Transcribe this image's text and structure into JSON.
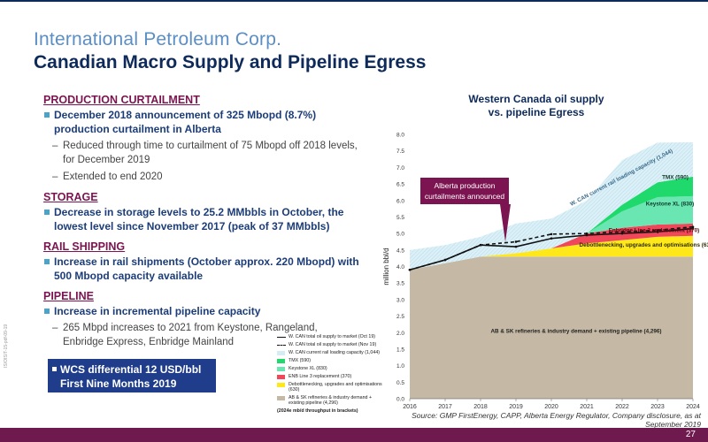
{
  "header": {
    "company": "International Petroleum Corp.",
    "title": "Canadian Macro Supply and Pipeline Egress"
  },
  "sections": [
    {
      "title": "PRODUCTION CURTAILMENT",
      "bullet": "December 2018 announcement of 325 Mbopd (8.7%) production curtailment in Alberta",
      "subs": [
        "Reduced through time to curtailment of 75 Mbopd off 2018 levels, for December 2019",
        "Extended to end 2020"
      ]
    },
    {
      "title": "STORAGE",
      "bullet": "Decrease in storage levels to 25.2 MMbbls in October, the lowest level since November 2017 (peak of 37 MMbbls)",
      "subs": []
    },
    {
      "title": "RAIL SHIPPING",
      "bullet": "Increase in rail shipments (October approx. 220 Mbopd) with 500 Mbopd capacity available",
      "subs": []
    },
    {
      "title": "PIPELINE",
      "bullet": "Increase in incremental pipeline capacity",
      "subs": [
        "265 Mbpd increases to 2021 from Keystone, Rangeland, Enbridge Express, Enbridge Mainland"
      ]
    }
  ],
  "wcs_box": {
    "line1": "WCS differential 12 USD/bbl",
    "line2": "First Nine Months 2019"
  },
  "side_code": "IS/OIS/T-15-pdf-09-19",
  "chart_data": {
    "type": "area",
    "title": "Western Canada oil supply\nvs. pipeline Egress",
    "ylabel": "million bbl/d",
    "x": [
      2016,
      2017,
      2018,
      2019,
      2020,
      2021,
      2022,
      2023,
      2024
    ],
    "ylim": [
      0.0,
      8.0
    ],
    "yticks": [
      "0.0",
      "0.5",
      "1.0",
      "1.5",
      "2.0",
      "2.5",
      "3.0",
      "3.5",
      "4.0",
      "4.5",
      "5.0",
      "5.5",
      "6.0",
      "6.5",
      "7.0",
      "7.5",
      "8.0"
    ],
    "stacked_series": [
      {
        "name": "AB & SK refineries & industry demand + existing pipeline (4,296)",
        "color": "#c5b9a5",
        "values": [
          3.9,
          4.1,
          4.3,
          4.3,
          4.3,
          4.3,
          4.3,
          4.3,
          4.3
        ]
      },
      {
        "name": "Debottlenecking, upgrades and optimisations (630)",
        "color": "#ffe81a",
        "values": [
          0.0,
          0.0,
          0.0,
          0.1,
          0.25,
          0.4,
          0.5,
          0.6,
          0.63
        ]
      },
      {
        "name": "ENB Line 3 replacement (370)",
        "color": "#f0475b",
        "values": [
          0.0,
          0.0,
          0.0,
          0.0,
          0.0,
          0.3,
          0.37,
          0.37,
          0.37
        ]
      },
      {
        "name": "Keystone XL (830)",
        "color": "#69e6b2",
        "values": [
          0.0,
          0.0,
          0.0,
          0.0,
          0.0,
          0.0,
          0.5,
          0.83,
          0.83
        ]
      },
      {
        "name": "TMX (590)",
        "color": "#1fd96c",
        "values": [
          0.0,
          0.0,
          0.0,
          0.0,
          0.0,
          0.0,
          0.2,
          0.45,
          0.59
        ]
      },
      {
        "name": "W. CAN current rail loading capacity (1,044)",
        "color": "#d4edf5",
        "values": [
          0.6,
          0.55,
          0.6,
          0.9,
          0.9,
          1.0,
          1.35,
          1.2,
          1.04
        ]
      }
    ],
    "lines": [
      {
        "name": "W. CAN total oil supply to market (Oct 19)",
        "style": "solid",
        "color": "#111111",
        "values": [
          3.9,
          4.2,
          4.65,
          4.6,
          4.85,
          4.95,
          5.0,
          5.05,
          5.15
        ]
      },
      {
        "name": "W. CAN total oil supply to market (Nov 19)",
        "style": "dashed",
        "color": "#111111",
        "values": [
          3.9,
          4.2,
          4.65,
          4.75,
          4.98,
          5.0,
          5.05,
          5.1,
          5.2
        ]
      }
    ],
    "area_labels": [
      {
        "text": "TMX (590)",
        "x": 2023.5,
        "y": 6.65,
        "color": "#0e3a2a"
      },
      {
        "text": "Keystone XL (830)",
        "x": 2023.35,
        "y": 5.85,
        "color": "#0e3a2a"
      },
      {
        "text": "Enbridge Line 3 replacement (370)",
        "x": 2022.9,
        "y": 5.05,
        "color": "#5a0a12"
      },
      {
        "text": "Debottlenecking, upgrades and optimisations (630)",
        "x": 2022.7,
        "y": 4.6,
        "color": "#2b2b00"
      },
      {
        "text": "AB & SK refineries & industry demand + existing pipeline (4,296)",
        "x": 2020.7,
        "y": 2.0,
        "color": "#222222"
      },
      {
        "text": "W. CAN current rail loading capacity (1,044)",
        "x": 2022.0,
        "y": 6.65,
        "color": "#3a6a8a",
        "rotate": -28
      }
    ],
    "callout": {
      "text": "Alberta production curtailments announced",
      "arrow_x": 2018.7,
      "arrow_y": 4.75
    },
    "legend_note": "(2024e mb/d throughput in brackets)",
    "legend_placement": "bottom-left"
  },
  "source": "Source: GMP FirstEnergy, CAPP, Alberta Energy Regulator, Company disclosure, as at September 2019",
  "footer": {
    "page_number": "27"
  }
}
